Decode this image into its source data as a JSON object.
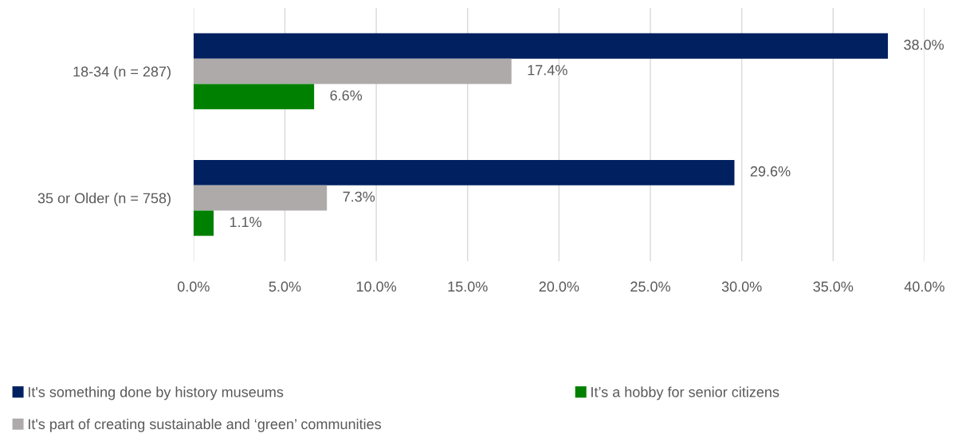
{
  "chart_data": {
    "type": "bar",
    "orientation": "horizontal",
    "categories": [
      "18-34 (n = 287)",
      "35 or Older (n = 758)"
    ],
    "series": [
      {
        "name": "It's something done by history museums",
        "color": "#002060",
        "values": [
          38.0,
          29.6
        ],
        "value_labels": [
          "38.0%",
          "29.6%"
        ]
      },
      {
        "name": "It's part of creating sustainable and ‘green’ communities",
        "color": "#aeaaaa",
        "values": [
          17.4,
          7.3
        ],
        "value_labels": [
          "17.4%",
          "7.3%"
        ]
      },
      {
        "name": "It’s a hobby for senior citizens",
        "color": "#008000",
        "values": [
          6.6,
          1.1
        ],
        "value_labels": [
          "6.6%",
          "1.1%"
        ]
      }
    ],
    "xlim": [
      0,
      40
    ],
    "xticks": [
      {
        "value": 0,
        "label": "0.0%"
      },
      {
        "value": 5,
        "label": "5.0%"
      },
      {
        "value": 10,
        "label": "10.0%"
      },
      {
        "value": 15,
        "label": "15.0%"
      },
      {
        "value": 20,
        "label": "20.0%"
      },
      {
        "value": 25,
        "label": "25.0%"
      },
      {
        "value": 30,
        "label": "30.0%"
      },
      {
        "value": 35,
        "label": "35.0%"
      },
      {
        "value": 40,
        "label": "40.0%"
      }
    ],
    "grid": "x",
    "legend": "bottom"
  }
}
